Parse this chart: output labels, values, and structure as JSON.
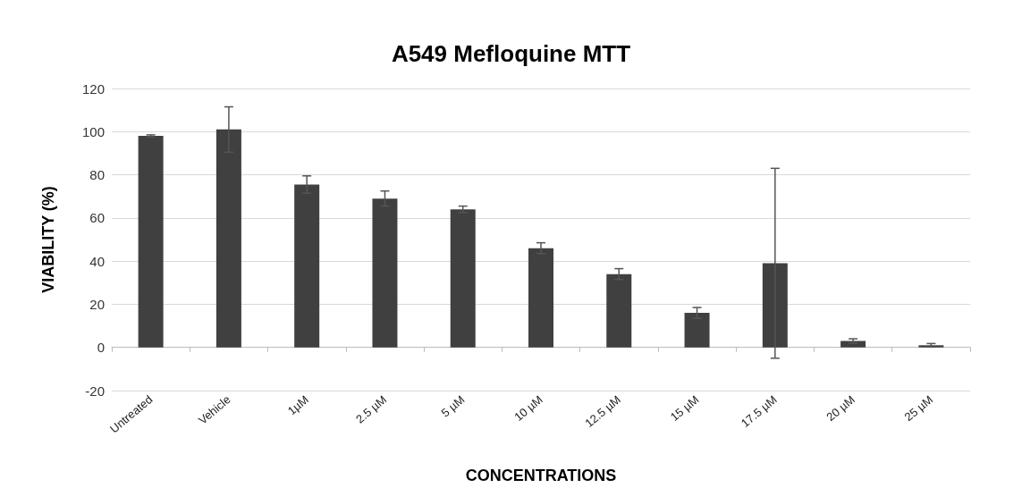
{
  "chart_data": {
    "type": "bar",
    "title": "A549 Mefloquine MTT",
    "xlabel": "CONCENTRATIONS",
    "ylabel": "VIABILITY (%)",
    "categories": [
      "Untreated",
      "Vehicle",
      "1µM",
      "2.5 µM",
      "5 µM",
      "10 µM",
      "12.5 µM",
      "15 µM",
      "17.5 µM",
      "20 µM",
      "25 µM"
    ],
    "values": [
      98,
      101,
      75.5,
      69,
      64,
      46,
      34,
      16,
      39,
      3,
      1
    ],
    "errors": [
      0.5,
      10.5,
      4,
      3.5,
      1.5,
      2.5,
      2.5,
      2.5,
      44,
      1,
      0.8
    ],
    "color": "#404040",
    "ylim": [
      -20,
      120
    ],
    "yticks": [
      -20,
      0,
      20,
      40,
      60,
      80,
      100,
      120
    ],
    "grid": "y"
  }
}
